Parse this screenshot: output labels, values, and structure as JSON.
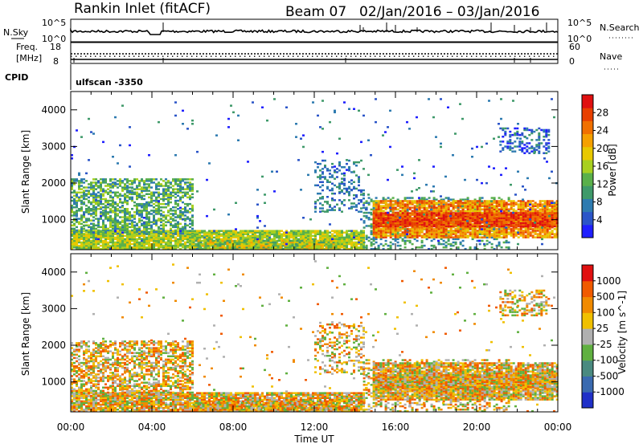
{
  "header": {
    "station": "Rankin Inlet (fitACF)",
    "beam": "Beam 07",
    "date_range": "02/Jan/2016 – 03/Jan/2016"
  },
  "top_panels": {
    "nsky_label": "N.Sky",
    "nsearch_label": "N.Search",
    "noise_left_ticks": [
      "10^5",
      "10^0"
    ],
    "noise_right_ticks": [
      "10^5",
      "10^0"
    ],
    "freq_label_line1": "Freq.",
    "freq_label_line2": "[MHz]",
    "freq_left_ticks": [
      "18",
      "8"
    ],
    "nave_label": "Nave",
    "nave_right_ticks": [
      "60",
      "0"
    ],
    "cpid_label": "CPID",
    "cpid_value": "ulfscan -3350"
  },
  "chart_data": [
    {
      "type": "heatmap",
      "name": "power",
      "xlabel": "Time UT",
      "ylabel": "Slant Range [km]",
      "x_ticks": [
        "00:00",
        "04:00",
        "08:00",
        "12:00",
        "16:00",
        "20:00",
        "00:00"
      ],
      "y_ticks": [
        "1000",
        "2000",
        "3000",
        "4000"
      ],
      "ylim": [
        180,
        4500
      ],
      "colorbar": {
        "label": "Power [dB]",
        "ticks": [
          "28",
          "24",
          "20",
          "16",
          "12",
          "8",
          "4"
        ],
        "colors": [
          "#1f1fff",
          "#2b55c8",
          "#2e7bb0",
          "#3f9a6a",
          "#5ab04a",
          "#a8d020",
          "#e8c800",
          "#f5a000",
          "#f07000",
          "#e84000",
          "#e01010"
        ]
      }
    },
    {
      "type": "heatmap",
      "name": "velocity",
      "xlabel": "Time UT",
      "ylabel": "Slant Range [km]",
      "x_ticks": [
        "00:00",
        "04:00",
        "08:00",
        "12:00",
        "16:00",
        "20:00",
        "00:00"
      ],
      "y_ticks": [
        "1000",
        "2000",
        "3000",
        "4000"
      ],
      "ylim": [
        180,
        4500
      ],
      "colorbar": {
        "label": "Velocity [m s^-1]",
        "ticks": [
          "1000",
          "500",
          "100",
          "25",
          "-25",
          "-100",
          "-500",
          "-1000"
        ],
        "colors": [
          "#2030c8",
          "#3a6ab0",
          "#4a8a80",
          "#60b040",
          "#b0b0b0",
          "#f0c000",
          "#f08a00",
          "#f05a00",
          "#e01010"
        ]
      }
    }
  ]
}
